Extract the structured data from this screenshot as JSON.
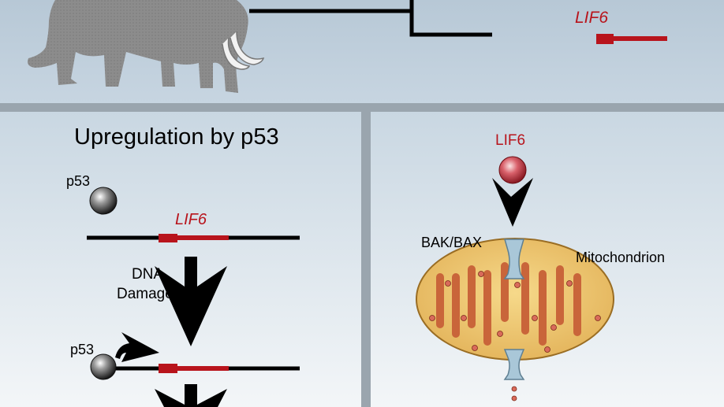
{
  "top": {
    "gene_label": "LIF6"
  },
  "left": {
    "title": "Upregulation by p53",
    "p53_label_1": "p53",
    "gene_label": "LIF6",
    "damage_line1": "DNA",
    "damage_line2": "Damage",
    "p53_label_2": "p53"
  },
  "right": {
    "ligand_label": "LIF6",
    "channel_label": "BAK/BAX",
    "organelle_label": "Mitochondrion"
  },
  "colors": {
    "gene_red": "#b8141c",
    "mito_fill": "#efc96b",
    "mito_cristae": "#c9653a",
    "channel": "#a9c7d8"
  }
}
